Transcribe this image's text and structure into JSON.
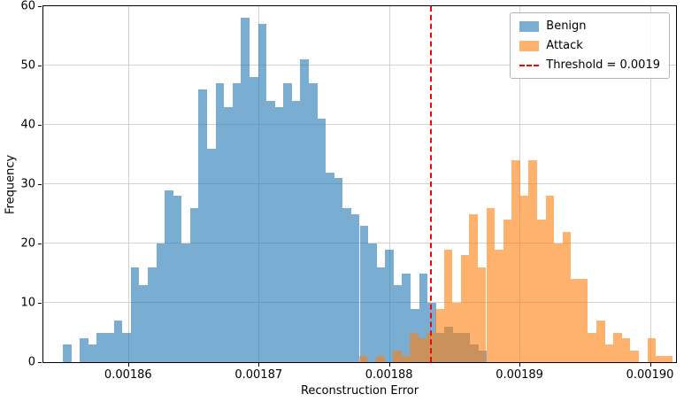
{
  "chart_data": {
    "type": "histogram",
    "title": "",
    "xlabel": "Reconstruction Error",
    "ylabel": "Frequency",
    "xlim": [
      0.0018535,
      0.001902
    ],
    "ylim": [
      0,
      60
    ],
    "grid": true,
    "legend_position": "upper right",
    "xticks": [
      {
        "value": 0.00186,
        "label": "0.00186"
      },
      {
        "value": 0.00187,
        "label": "0.00187"
      },
      {
        "value": 0.00188,
        "label": "0.00188"
      },
      {
        "value": 0.00189,
        "label": "0.00189"
      },
      {
        "value": 0.0019,
        "label": "0.00190"
      }
    ],
    "yticks": [
      {
        "value": 0,
        "label": "0"
      },
      {
        "value": 10,
        "label": "10"
      },
      {
        "value": 20,
        "label": "20"
      },
      {
        "value": 30,
        "label": "30"
      },
      {
        "value": 40,
        "label": "40"
      },
      {
        "value": 50,
        "label": "50"
      },
      {
        "value": 60,
        "label": "60"
      }
    ],
    "series": [
      {
        "name": "Benign",
        "color": "#1f77b4",
        "css_color": "rgba(31,119,180,0.6)",
        "bin_start": 0.001855,
        "bin_width": 6.5e-07,
        "counts": [
          3,
          0,
          4,
          3,
          5,
          5,
          7,
          5,
          16,
          13,
          16,
          20,
          29,
          28,
          20,
          26,
          46,
          36,
          47,
          43,
          47,
          58,
          48,
          57,
          44,
          43,
          47,
          44,
          51,
          47,
          41,
          32,
          31,
          26,
          25,
          23,
          20,
          16,
          19,
          13,
          15,
          9,
          15,
          10,
          5,
          6,
          5,
          5,
          3,
          2
        ]
      },
      {
        "name": "Attack",
        "color": "#ff7f0e",
        "css_color": "rgba(255,127,14,0.6)",
        "bin_start": 0.0018777,
        "bin_width": 6.5e-07,
        "counts": [
          1,
          0,
          1,
          0,
          2,
          1,
          5,
          4,
          5,
          9,
          19,
          10,
          18,
          25,
          16,
          26,
          19,
          24,
          34,
          28,
          34,
          24,
          28,
          20,
          22,
          14,
          14,
          5,
          7,
          3,
          5,
          4,
          2,
          0,
          4,
          1,
          1
        ]
      }
    ],
    "threshold": {
      "value": 0.0018832,
      "label": "Threshold = 0.0019",
      "color": "#ff0000",
      "style": "dashed"
    },
    "legend": [
      {
        "label": "Benign",
        "type": "patch",
        "css_color": "rgba(31,119,180,0.6)"
      },
      {
        "label": "Attack",
        "type": "patch",
        "css_color": "rgba(255,127,14,0.6)"
      },
      {
        "label": "Threshold = 0.0019",
        "type": "line",
        "css_color": "#ff0000"
      }
    ]
  }
}
